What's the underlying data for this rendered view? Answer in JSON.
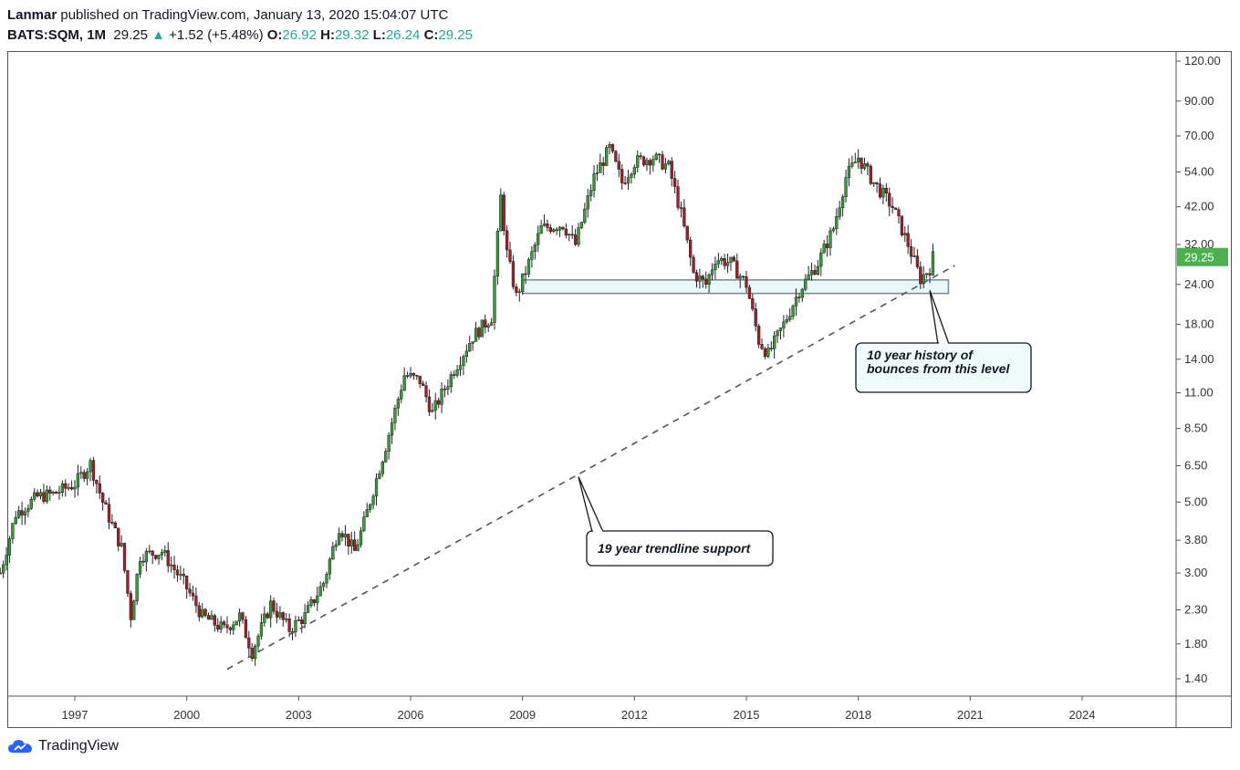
{
  "header": {
    "author": "Lanmar",
    "published_text": "published on TradingView.com, January 13, 2020 15:04:07 UTC",
    "symbol": "BATS:SQM, 1M",
    "last": "29.25",
    "change": "+1.52 (+5.48%)",
    "o_label": "O:",
    "o_value": "26.92",
    "h_label": "H:",
    "h_value": "29.32",
    "l_label": "L:",
    "l_value": "26.24",
    "c_label": "C:",
    "c_value": "29.25"
  },
  "footer": {
    "brand": "TradingView"
  },
  "colors": {
    "up": "#26a69a",
    "down": "#ef5350",
    "candle_up": "#3a9a3a",
    "candle_down": "#a0202a",
    "price_badge": "#4caf50",
    "zone_fill": "#e8f8fb",
    "zone_stroke": "#7a8a8a"
  },
  "chart_data": {
    "type": "candlestick",
    "y_scale": "log",
    "ylim": [
      1.25,
      130
    ],
    "x_axis_ticks": [
      "1997",
      "2000",
      "2003",
      "2006",
      "2009",
      "2012",
      "2015",
      "2018",
      "2021",
      "2024"
    ],
    "y_axis_ticks": [
      "120.00",
      "90.00",
      "70.00",
      "54.00",
      "42.00",
      "32.00",
      "24.00",
      "18.00",
      "14.00",
      "11.00",
      "8.50",
      "6.50",
      "5.00",
      "3.80",
      "3.00",
      "2.30",
      "1.80",
      "1.40"
    ],
    "last_price_label": "29.25",
    "price_path": [
      [
        "1995-01",
        3.0
      ],
      [
        "1995-06",
        4.6
      ],
      [
        "1996-01",
        5.2
      ],
      [
        "1996-06",
        5.3
      ],
      [
        "1997-01",
        5.7
      ],
      [
        "1997-06",
        6.6
      ],
      [
        "1997-10",
        5.0
      ],
      [
        "1998-04",
        3.6
      ],
      [
        "1998-07",
        2.2
      ],
      [
        "1998-10",
        3.4
      ],
      [
        "1999-05",
        3.5
      ],
      [
        "1999-12",
        2.8
      ],
      [
        "2000-06",
        2.2
      ],
      [
        "2001-01",
        2.0
      ],
      [
        "2001-06",
        2.2
      ],
      [
        "2001-10",
        1.7
      ],
      [
        "2002-04",
        2.4
      ],
      [
        "2002-10",
        2.0
      ],
      [
        "2003-03",
        2.2
      ],
      [
        "2003-09",
        2.8
      ],
      [
        "2004-02",
        4.2
      ],
      [
        "2004-07",
        3.5
      ],
      [
        "2004-10",
        4.3
      ],
      [
        "2005-05",
        7.5
      ],
      [
        "2005-11",
        12.5
      ],
      [
        "2006-04",
        12.0
      ],
      [
        "2006-08",
        9.5
      ],
      [
        "2007-03",
        13.0
      ],
      [
        "2007-09",
        16.5
      ],
      [
        "2008-03",
        19.0
      ],
      [
        "2008-06",
        45.0
      ],
      [
        "2008-08",
        30.0
      ],
      [
        "2008-11",
        22.0
      ],
      [
        "2009-03",
        28.0
      ],
      [
        "2009-07",
        36.0
      ],
      [
        "2010-02",
        37.0
      ],
      [
        "2010-06",
        32.0
      ],
      [
        "2010-12",
        52.0
      ],
      [
        "2011-05",
        64.0
      ],
      [
        "2011-09",
        50.0
      ],
      [
        "2012-01",
        58.0
      ],
      [
        "2012-07",
        60.0
      ],
      [
        "2012-12",
        56.0
      ],
      [
        "2013-04",
        40.0
      ],
      [
        "2013-08",
        26.0
      ],
      [
        "2013-12",
        24.0
      ],
      [
        "2014-03",
        29.0
      ],
      [
        "2014-08",
        28.0
      ],
      [
        "2015-01",
        24.0
      ],
      [
        "2015-05",
        16.0
      ],
      [
        "2015-08",
        14.5
      ],
      [
        "2016-01",
        18.0
      ],
      [
        "2016-06",
        23.0
      ],
      [
        "2016-12",
        28.0
      ],
      [
        "2017-05",
        36.0
      ],
      [
        "2017-09",
        52.0
      ],
      [
        "2018-01",
        60.0
      ],
      [
        "2018-06",
        50.0
      ],
      [
        "2018-12",
        42.0
      ],
      [
        "2019-05",
        32.0
      ],
      [
        "2019-09",
        25.0
      ],
      [
        "2019-12",
        27.0
      ],
      [
        "2020-01",
        29.25
      ]
    ],
    "support_zone": {
      "from": "2009-01",
      "to": "2020-06",
      "low": 22.5,
      "high": 24.8
    },
    "trendline": {
      "start": [
        "2001-02",
        1.5
      ],
      "end": [
        "2020-08",
        27.5
      ],
      "style": "dashed"
    },
    "annotations": [
      {
        "text_lines": [
          "19 year trendline support"
        ],
        "points_to": [
          "2010-07",
          6.0
        ]
      },
      {
        "text_lines": [
          "10 year history of",
          "bounces from this level"
        ],
        "points_to": [
          "2019-12",
          23.0
        ]
      }
    ]
  }
}
